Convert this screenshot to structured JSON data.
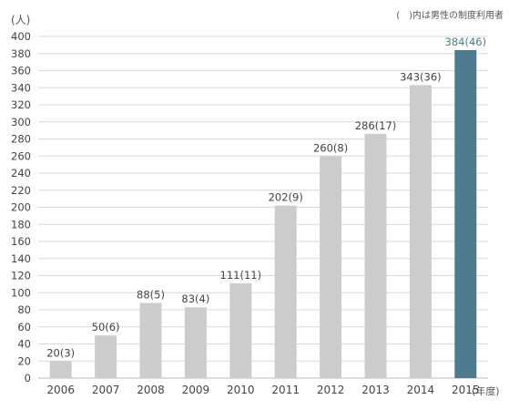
{
  "chart_data": {
    "type": "bar",
    "note": "(　)内は男性の制度利用者",
    "y_unit": "(人)",
    "x_unit": "(年度)",
    "categories": [
      "2006",
      "2007",
      "2008",
      "2009",
      "2010",
      "2011",
      "2012",
      "2013",
      "2014",
      "2015"
    ],
    "values": [
      20,
      50,
      88,
      83,
      111,
      202,
      260,
      286,
      343,
      384
    ],
    "male_values": [
      3,
      6,
      5,
      4,
      11,
      9,
      8,
      17,
      36,
      46
    ],
    "data_labels": [
      "20(3)",
      "50(6)",
      "88(5)",
      "83(4)",
      "111(11)",
      "202(9)",
      "260(8)",
      "286(17)",
      "343(36)",
      "384(46)"
    ],
    "ylim": [
      0,
      400
    ],
    "ytick_step": 20,
    "grid": true,
    "colors": {
      "bar": "#cccccc",
      "highlight_bar": "#4f7b91",
      "highlight_label": "#4f7b91",
      "grid": "#d9d9d9",
      "text": "#444444"
    },
    "highlight_index": 9
  }
}
